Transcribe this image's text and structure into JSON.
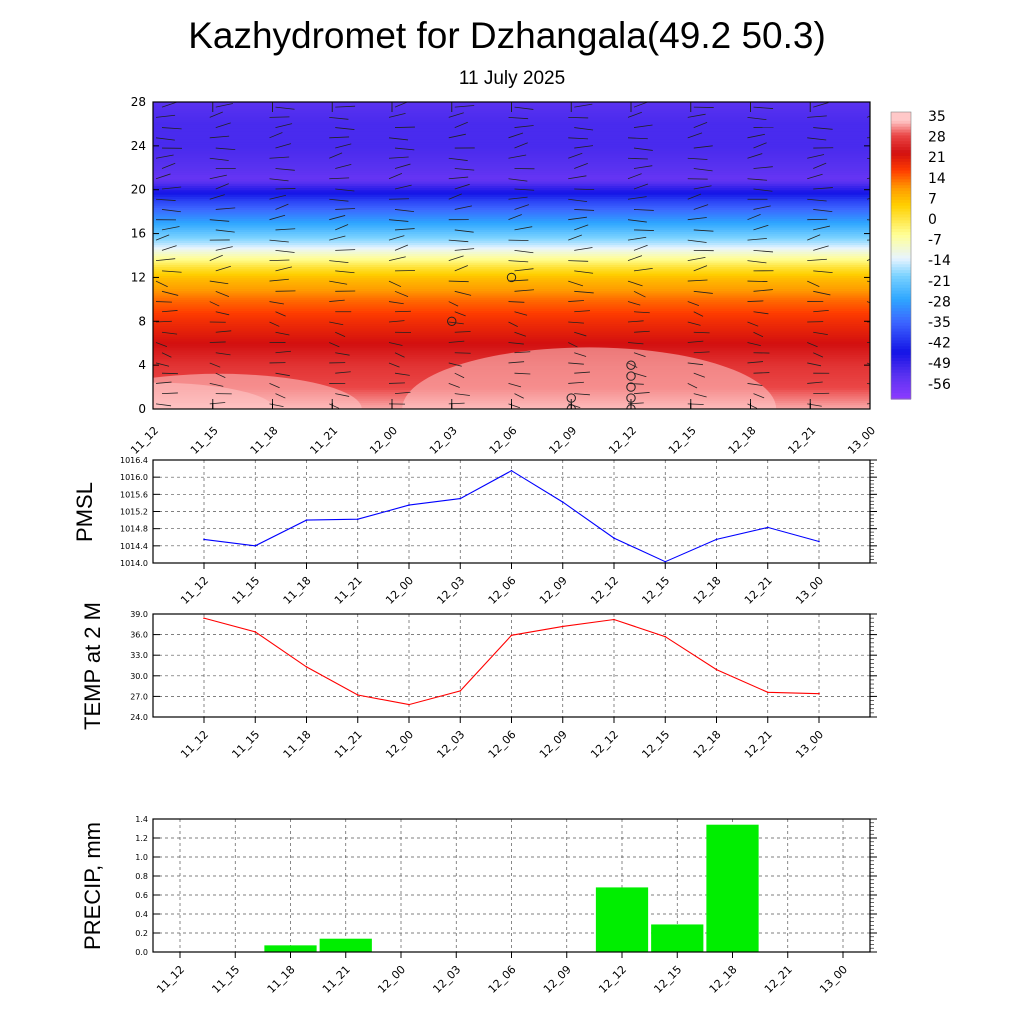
{
  "header": {
    "title": "Kazhydromet for Dzhangala(49.2 50.3)",
    "subtitle": "11 July 2025"
  },
  "chart_data": [
    {
      "type": "heatmap",
      "title": "",
      "x": [
        "11_12",
        "11_15",
        "11_18",
        "11_21",
        "12_00",
        "12_03",
        "12_06",
        "12_09",
        "12_12",
        "12_15",
        "12_18",
        "12_21",
        "13_00"
      ],
      "y_ticks": [
        0,
        4,
        8,
        12,
        16,
        20,
        24,
        28
      ],
      "ylim": [
        0,
        28
      ],
      "colorbar": {
        "labels": [
          "35",
          "28",
          "21",
          "14",
          "7",
          "0",
          "-7",
          "-14",
          "-21",
          "-28",
          "-35",
          "-42",
          "-49",
          "-56"
        ],
        "stops": [
          {
            "v": 35,
            "color": "#ffc8c8"
          },
          {
            "v": 30,
            "color": "#ea4646"
          },
          {
            "v": 24,
            "color": "#d21010"
          },
          {
            "v": 18,
            "color": "#ff3c00"
          },
          {
            "v": 12,
            "color": "#ff9a00"
          },
          {
            "v": 6,
            "color": "#ffd000"
          },
          {
            "v": -4,
            "color": "#ffff96"
          },
          {
            "v": -12,
            "color": "#e8f4ff"
          },
          {
            "v": -18,
            "color": "#7ad2ff"
          },
          {
            "v": -26,
            "color": "#2ea6ff"
          },
          {
            "v": -34,
            "color": "#3c64ff"
          },
          {
            "v": -44,
            "color": "#1414e6"
          },
          {
            "v": -52,
            "color": "#5a32f0"
          },
          {
            "v": -60,
            "color": "#8c3cff"
          }
        ]
      },
      "temperature_profile": {
        "levels": [
          0,
          1,
          2,
          3,
          4,
          6,
          8,
          10,
          12,
          13,
          14,
          15,
          16,
          17,
          18,
          19,
          20,
          21,
          22,
          24,
          26,
          28
        ],
        "values": [
          34,
          32,
          30,
          29,
          28,
          24,
          20,
          15,
          8,
          2,
          -6,
          -14,
          -20,
          -26,
          -32,
          -38,
          -46,
          -54,
          -52,
          -50,
          -50,
          -52
        ]
      },
      "calm_markers": [
        {
          "x": "12_03",
          "y": 8
        },
        {
          "x": "12_06",
          "y": 12
        },
        {
          "x": "12_09",
          "y": 1
        },
        {
          "x": "12_09",
          "y": 0
        },
        {
          "x": "12_12",
          "y": 4
        },
        {
          "x": "12_12",
          "y": 3
        },
        {
          "x": "12_12",
          "y": 2
        },
        {
          "x": "12_12",
          "y": 1
        },
        {
          "x": "12_12",
          "y": 0
        }
      ]
    },
    {
      "type": "line",
      "ylabel": "PMSL",
      "x": [
        "11_12",
        "11_15",
        "11_18",
        "11_21",
        "12_00",
        "12_03",
        "12_06",
        "12_09",
        "12_12",
        "12_15",
        "12_18",
        "12_21",
        "13_00"
      ],
      "series": [
        {
          "values": [
            1014.55,
            1014.4,
            1015.0,
            1015.02,
            1015.35,
            1015.5,
            1016.15,
            1015.42,
            1014.58,
            1014.03,
            1014.55,
            1014.83,
            1014.5
          ],
          "color": "#0000ff"
        }
      ],
      "ylim": [
        1014.0,
        1016.4
      ],
      "y_ticks": [
        "1014.0",
        "1014.4",
        "1014.8",
        "1015.2",
        "1015.6",
        "1016.0",
        "1016.4"
      ],
      "grid": true
    },
    {
      "type": "line",
      "ylabel": "TEMP at 2 M",
      "x": [
        "11_12",
        "11_15",
        "11_18",
        "11_21",
        "12_00",
        "12_03",
        "12_06",
        "12_09",
        "12_12",
        "12_15",
        "12_18",
        "12_21",
        "13_00"
      ],
      "series": [
        {
          "values": [
            38.4,
            36.4,
            31.3,
            27.2,
            25.8,
            27.8,
            35.9,
            37.2,
            38.2,
            35.7,
            30.9,
            27.6,
            27.4
          ],
          "color": "#ff0000"
        }
      ],
      "ylim": [
        24.0,
        39.0
      ],
      "y_ticks": [
        "24.0",
        "27.0",
        "30.0",
        "33.0",
        "36.0",
        "39.0"
      ],
      "grid": true
    },
    {
      "type": "bar",
      "ylabel": "PRECIP, mm",
      "x": [
        "11_12",
        "11_15",
        "11_18",
        "11_21",
        "12_00",
        "12_03",
        "12_06",
        "12_09",
        "12_12",
        "12_15",
        "12_18",
        "12_21",
        "13_00"
      ],
      "values": [
        0,
        0,
        0.07,
        0.14,
        0,
        0,
        0,
        0,
        0.68,
        0.29,
        1.34,
        0,
        0
      ],
      "bar_color": "#00ee00",
      "ylim": [
        0,
        1.4
      ],
      "y_ticks": [
        "0.0",
        "0.2",
        "0.4",
        "0.6",
        "0.8",
        "1.0",
        "1.2",
        "1.4"
      ],
      "grid": true
    }
  ]
}
